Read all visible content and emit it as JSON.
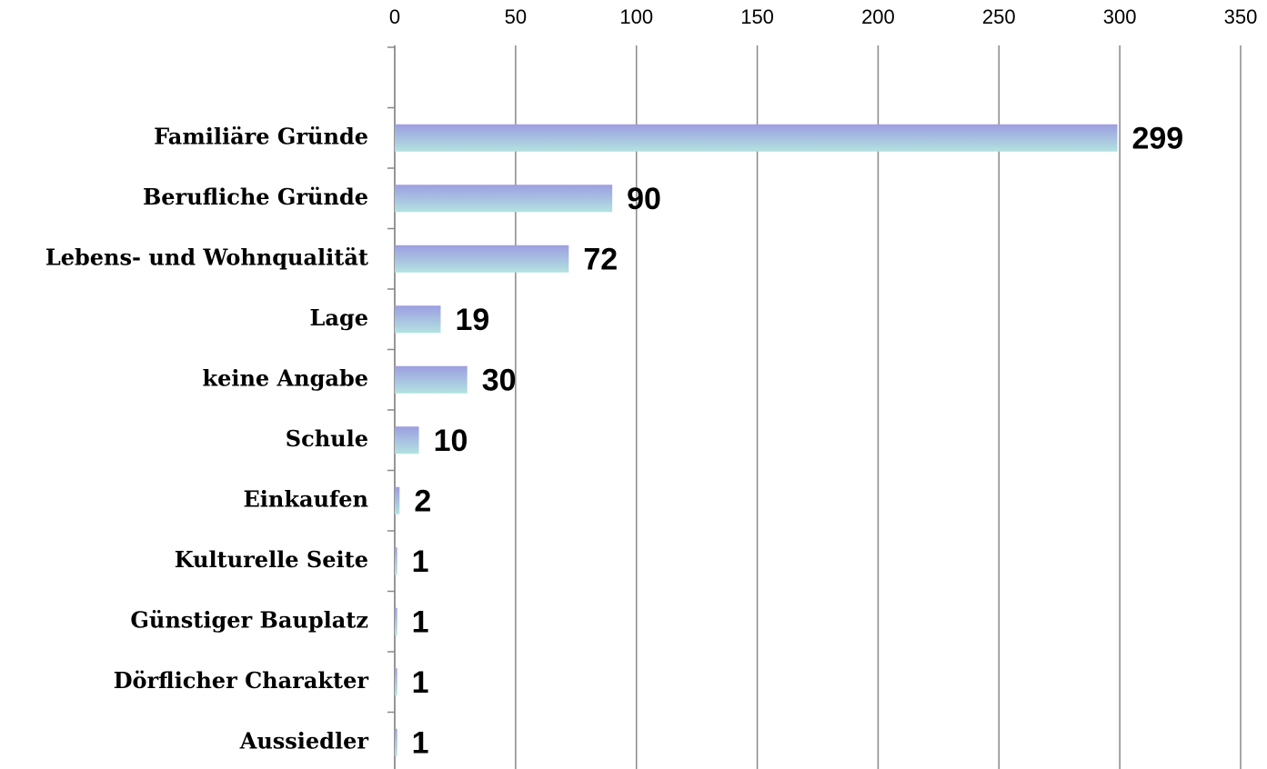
{
  "chart_data": {
    "type": "barh",
    "categories": [
      null,
      "Familiäre Gründe",
      "Berufliche Gründe",
      "Lebens- und Wohnqualität",
      "Lage",
      "keine Angabe",
      "Schule",
      "Einkaufen",
      "Kulturelle Seite",
      "Günstiger Bauplatz",
      "Dörflicher Charakter",
      "Aussiedler"
    ],
    "values": [
      null,
      299,
      90,
      72,
      19,
      30,
      10,
      2,
      1,
      1,
      1,
      1
    ],
    "color": [
      "#9c9ee0",
      "#b3e3e0"
    ],
    "xlim": [
      0,
      350
    ],
    "xticks": [
      0,
      50,
      100,
      150,
      200,
      250,
      300,
      350
    ],
    "grid": true
  }
}
